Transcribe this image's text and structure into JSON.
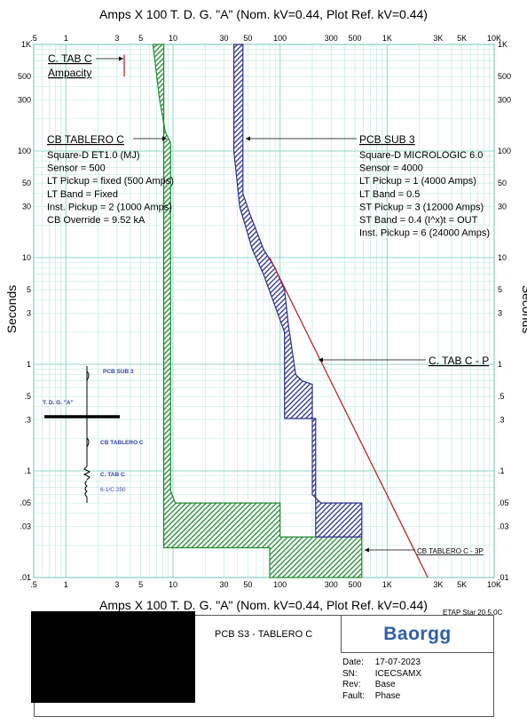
{
  "header": {
    "title_top": "Amps  X  100   T. D. G. \"A\" (Nom. kV=0.44, Plot Ref. kV=0.44)",
    "title_bottom": "Amps  X  100   T. D. G. \"A\" (Nom. kV=0.44, Plot Ref. kV=0.44)",
    "y_label": "Seconds"
  },
  "chart_data": {
    "type": "line",
    "x_scale": "log",
    "y_scale": "log",
    "xlim": [
      0.5,
      10000
    ],
    "ylim": [
      0.01,
      1000
    ],
    "grid": true,
    "xlabel": "Amps  X  100   T. D. G. \"A\" (Nom. kV=0.44, Plot Ref. kV=0.44)",
    "ylabel": "Seconds",
    "x_ticks": [
      {
        "value": 0.5,
        "label": ".5"
      },
      {
        "value": 1,
        "label": "1"
      },
      {
        "value": 3,
        "label": "3"
      },
      {
        "value": 5,
        "label": "5"
      },
      {
        "value": 10,
        "label": "10"
      },
      {
        "value": 30,
        "label": "30"
      },
      {
        "value": 50,
        "label": "50"
      },
      {
        "value": 100,
        "label": "100"
      },
      {
        "value": 300,
        "label": "300"
      },
      {
        "value": 500,
        "label": "500"
      },
      {
        "value": 1000,
        "label": "1K"
      },
      {
        "value": 3000,
        "label": "3K"
      },
      {
        "value": 5000,
        "label": "5K"
      },
      {
        "value": 10000,
        "label": "10K"
      }
    ],
    "y_ticks": [
      {
        "value": 1000,
        "label": "1K"
      },
      {
        "value": 500,
        "label": "500"
      },
      {
        "value": 300,
        "label": "300"
      },
      {
        "value": 100,
        "label": "100"
      },
      {
        "value": 50,
        "label": "50"
      },
      {
        "value": 30,
        "label": "30"
      },
      {
        "value": 10,
        "label": "10"
      },
      {
        "value": 5,
        "label": "5"
      },
      {
        "value": 3,
        "label": "3"
      },
      {
        "value": 1,
        "label": "1"
      },
      {
        "value": 0.5,
        "label": ".5"
      },
      {
        "value": 0.3,
        "label": ".3"
      },
      {
        "value": 0.1,
        "label": ".1"
      },
      {
        "value": 0.05,
        "label": ".05"
      },
      {
        "value": 0.03,
        "label": ".03"
      },
      {
        "value": 0.01,
        "label": ".01"
      }
    ],
    "series": [
      {
        "name": "CB TABLERO C",
        "color": "#1e8a2e",
        "band_outline": [
          [
            6.5,
            1000
          ],
          [
            7.5,
            300
          ],
          [
            8.5,
            150
          ],
          [
            9.5,
            120
          ],
          [
            9.5,
            0.065
          ],
          [
            10.5,
            0.05
          ],
          [
            100,
            0.05
          ],
          [
            100,
            0.024
          ],
          [
            580,
            0.024
          ],
          [
            580,
            0.01
          ],
          [
            80,
            0.01
          ],
          [
            80,
            0.019
          ],
          [
            8.2,
            0.019
          ],
          [
            8.2,
            1000
          ]
        ]
      },
      {
        "name": "PCB SUB 3",
        "color": "#2c2f8c",
        "band_outline": [
          [
            45,
            1000
          ],
          [
            45,
            40
          ],
          [
            52,
            26
          ],
          [
            70,
            12
          ],
          [
            90,
            8
          ],
          [
            110,
            5
          ],
          [
            120,
            2.3
          ],
          [
            140,
            0.8
          ],
          [
            160,
            0.7
          ],
          [
            200,
            0.65
          ],
          [
            200,
            0.06
          ],
          [
            240,
            0.05
          ],
          [
            580,
            0.05
          ],
          [
            580,
            0.024
          ],
          [
            215,
            0.024
          ],
          [
            215,
            0.31
          ],
          [
            110,
            0.31
          ],
          [
            110,
            2
          ],
          [
            90,
            3.5
          ],
          [
            70,
            7
          ],
          [
            55,
            12
          ],
          [
            42,
            30
          ],
          [
            37,
            100
          ],
          [
            37,
            1000
          ]
        ]
      },
      {
        "name": "C. TAB C - P",
        "color": "#b5272d",
        "points": [
          [
            80,
            10
          ],
          [
            2400,
            0.01
          ]
        ]
      },
      {
        "name": "C. TAB C Ampacity",
        "color": "#c0262d",
        "points": [
          [
            3.5,
            800
          ],
          [
            3.5,
            500
          ]
        ]
      }
    ],
    "annotations": {
      "ctab_ampacity_title": "C. TAB C",
      "ctab_ampacity_sub": "Ampacity",
      "cb_tablero": {
        "title": "CB TABLERO C",
        "lines": [
          "Square-D  ET1.0 (MJ)",
          "Sensor = 500",
          "LT Pickup = fixed (500 Amps)",
          "LT Band = Fixed",
          "Inst. Pickup = 2 (1000 Amps)",
          "CB Override = 9.52 kA"
        ]
      },
      "pcb_sub3": {
        "title": "PCB SUB 3",
        "lines": [
          "Square-D  MICROLOGIC 6.0",
          "Sensor = 4000",
          "LT Pickup = 1 (4000 Amps)",
          "LT Band = 0.5",
          "ST Pickup = 3 (12000 Amps)",
          "ST Band = 0.4  (I^x)t = OUT",
          "Inst. Pickup = 6 (24000 Amps)"
        ]
      },
      "ctab_p_label": "C. TAB C - P",
      "cb_tablero_3p_label": "CB TABLERO C - 3P"
    },
    "one_line": {
      "pcb_sub3": "PCB SUB 3",
      "bus": "T. D. G. \"A\"",
      "cb_tablero": "CB TABLERO C",
      "cable_name": "C. TAB C",
      "cable_spec": "6-1/C 250"
    }
  },
  "title_block": {
    "version": "ETAP Star 20.5.0C",
    "project": "PCB S3 - TABLERO C",
    "logo": "Baorgg",
    "rows": [
      {
        "key": "Date:",
        "value": "17-07-2023"
      },
      {
        "key": "SN:",
        "value": "ICECSAMX"
      },
      {
        "key": "Rev:",
        "value": "Base"
      },
      {
        "key": "Fault:",
        "value": "Phase"
      }
    ]
  }
}
